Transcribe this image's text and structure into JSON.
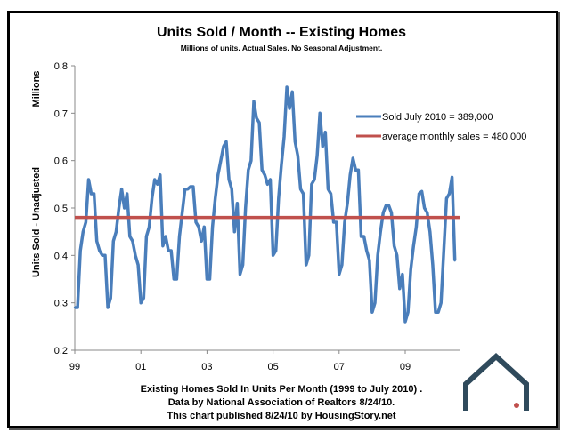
{
  "chart_data": {
    "type": "line",
    "title": "Units Sold / Month -- Existing Homes",
    "subtitle": "Millions of units. Actual Sales. No Seasonal Adjustment.",
    "ylabel": "Units Sold - Unadjusted",
    "yunit": "Millions",
    "ylim": [
      0.2,
      0.8
    ],
    "yticks": [
      "0.2",
      "0.3",
      "0.4",
      "0.5",
      "0.6",
      "0.7",
      "0.8"
    ],
    "xticks": [
      "99",
      "01",
      "03",
      "05",
      "07",
      "09"
    ],
    "grid": false,
    "legend_position": "right",
    "x_start": "1999-01",
    "x_end": "2010-07",
    "series": [
      {
        "name": "Sold July 2010 =  389,000",
        "color": "#4a7ebb",
        "values": [
          0.29,
          0.29,
          0.41,
          0.45,
          0.47,
          0.56,
          0.53,
          0.53,
          0.43,
          0.41,
          0.4,
          0.4,
          0.29,
          0.31,
          0.43,
          0.45,
          0.5,
          0.54,
          0.5,
          0.53,
          0.44,
          0.43,
          0.4,
          0.38,
          0.3,
          0.31,
          0.44,
          0.46,
          0.52,
          0.56,
          0.55,
          0.57,
          0.42,
          0.44,
          0.41,
          0.41,
          0.35,
          0.35,
          0.44,
          0.49,
          0.54,
          0.54,
          0.545,
          0.545,
          0.47,
          0.46,
          0.43,
          0.46,
          0.35,
          0.35,
          0.46,
          0.52,
          0.57,
          0.6,
          0.63,
          0.64,
          0.56,
          0.54,
          0.45,
          0.51,
          0.36,
          0.38,
          0.5,
          0.58,
          0.6,
          0.725,
          0.69,
          0.68,
          0.58,
          0.57,
          0.55,
          0.56,
          0.4,
          0.41,
          0.52,
          0.59,
          0.65,
          0.755,
          0.71,
          0.745,
          0.64,
          0.61,
          0.54,
          0.53,
          0.38,
          0.4,
          0.55,
          0.56,
          0.61,
          0.7,
          0.63,
          0.66,
          0.54,
          0.53,
          0.47,
          0.47,
          0.36,
          0.38,
          0.47,
          0.51,
          0.57,
          0.605,
          0.58,
          0.58,
          0.44,
          0.44,
          0.41,
          0.39,
          0.28,
          0.3,
          0.4,
          0.45,
          0.49,
          0.505,
          0.505,
          0.49,
          0.42,
          0.4,
          0.33,
          0.36,
          0.26,
          0.28,
          0.37,
          0.42,
          0.46,
          0.53,
          0.535,
          0.5,
          0.49,
          0.45,
          0.38,
          0.28,
          0.28,
          0.3,
          0.41,
          0.52,
          0.53,
          0.565,
          0.389
        ]
      },
      {
        "name": "average monthly sales = 480,000",
        "color": "#c0504d",
        "values": [
          0.48
        ]
      }
    ],
    "footer": [
      "Existing Homes Sold In Units Per Month (1999 to July 2010) .",
      "Data by National Association of Realtors 8/24/10.",
      "This chart published 8/24/10 by HousingStory.net"
    ]
  },
  "logo": {
    "name": "house-logo-icon",
    "color": "#2f4a5c",
    "accent": "#c0504d"
  }
}
